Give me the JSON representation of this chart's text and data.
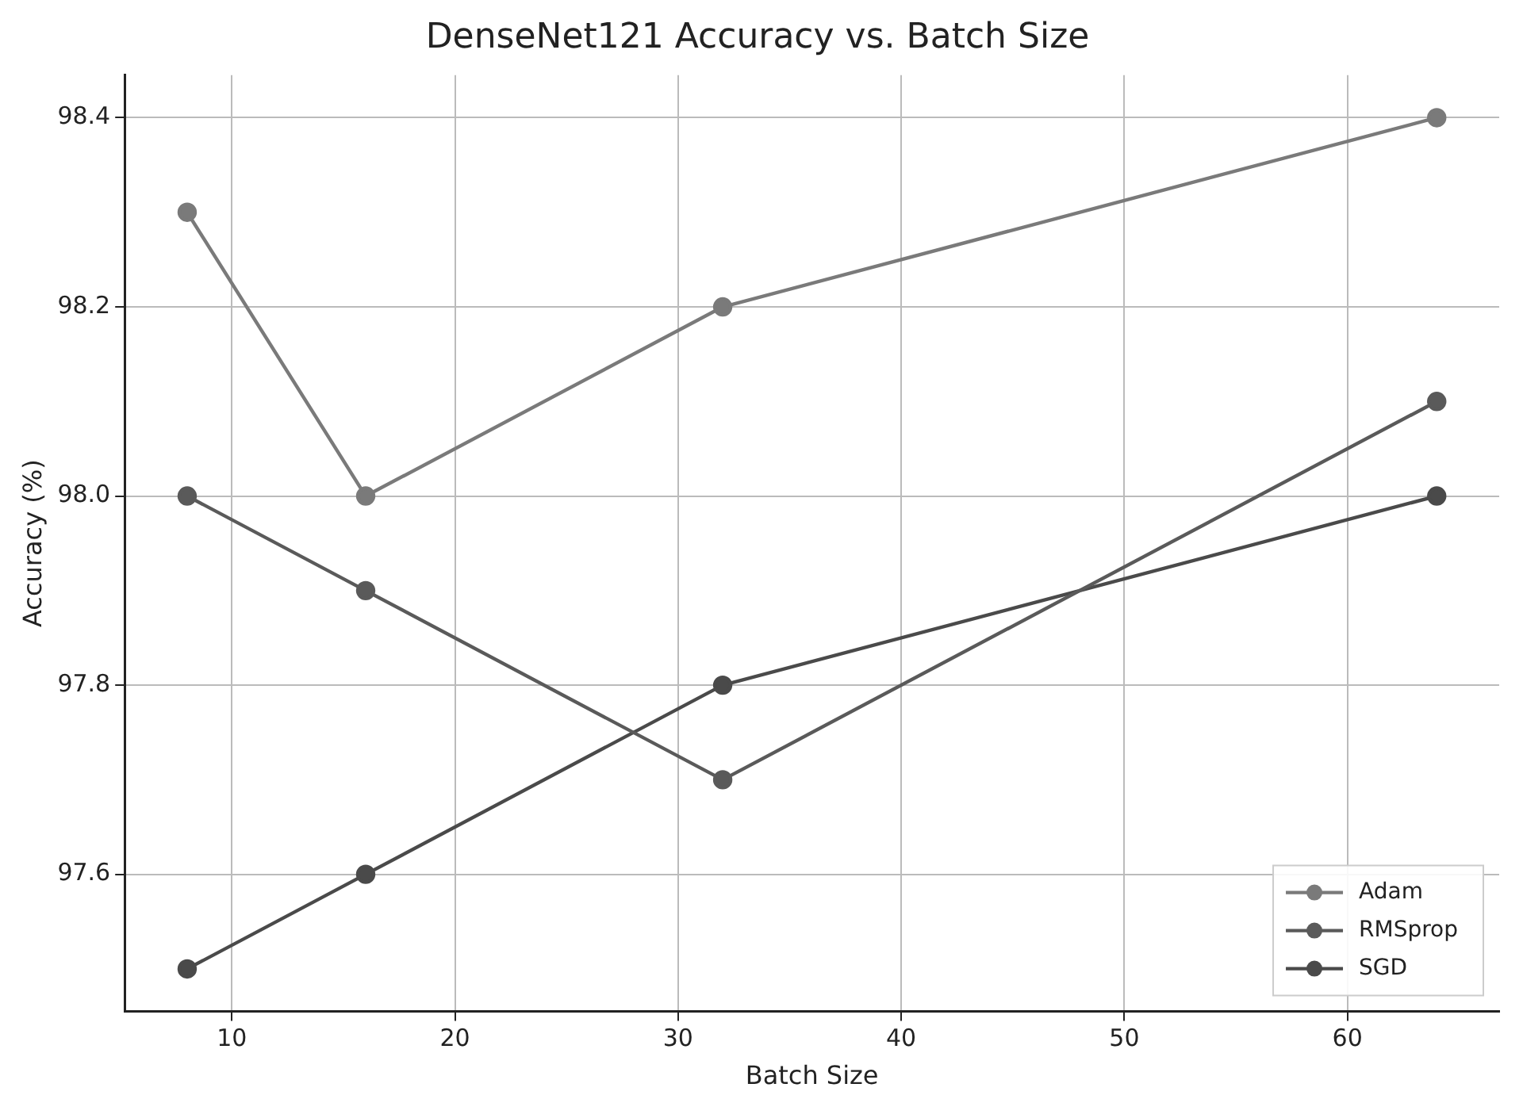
{
  "chart_data": {
    "type": "line",
    "title": "DenseNet121 Accuracy vs. Batch Size",
    "xlabel": "Batch Size",
    "ylabel": "Accuracy (%)",
    "x": [
      8,
      16,
      32,
      64
    ],
    "series": [
      {
        "name": "Adam",
        "color": "#7a7a7a",
        "values": [
          98.3,
          98.0,
          98.2,
          98.4
        ]
      },
      {
        "name": "RMSprop",
        "color": "#5a5a5a",
        "values": [
          98.0,
          97.9,
          97.7,
          98.1
        ]
      },
      {
        "name": "SGD",
        "color": "#4a4a4a",
        "values": [
          97.5,
          97.6,
          97.8,
          98.0
        ]
      }
    ],
    "xlim": [
      5.2,
      66.8
    ],
    "xticks": [
      10,
      20,
      30,
      40,
      50,
      60
    ],
    "ylim": [
      97.455,
      98.445
    ],
    "yticks": [
      {
        "value": 97.6,
        "label": "97.6"
      },
      {
        "value": 97.8,
        "label": "97.8"
      },
      {
        "value": 98.0,
        "label": "98.0"
      },
      {
        "value": 98.2,
        "label": "98.2"
      },
      {
        "value": 98.4,
        "label": "98.4"
      }
    ],
    "grid": true,
    "legend": "bottom right",
    "marker": "circle",
    "line_style": "solid"
  }
}
